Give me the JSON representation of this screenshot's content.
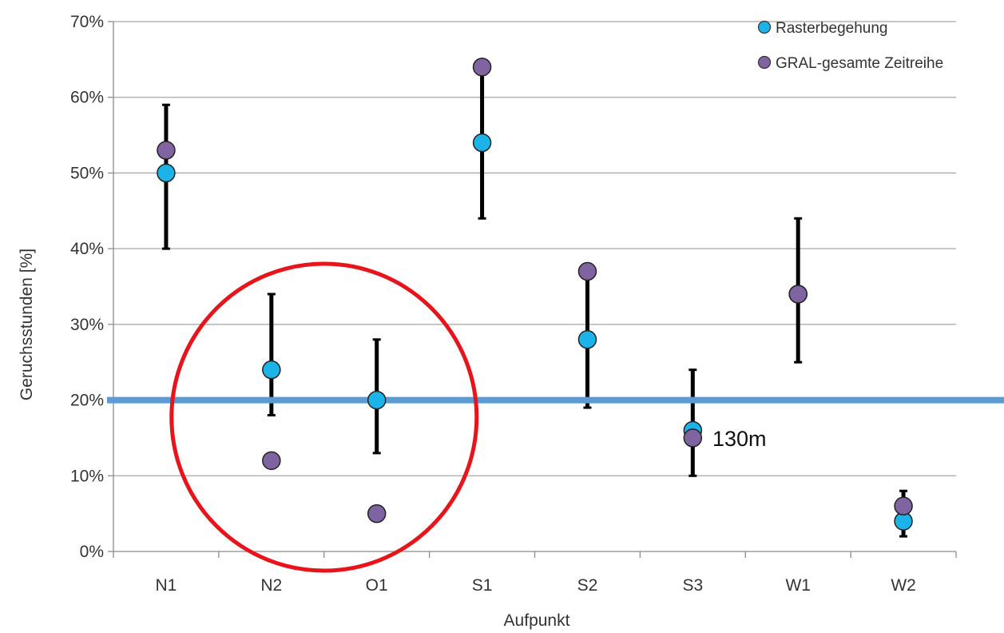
{
  "chart_data": {
    "type": "scatter",
    "title": "",
    "xlabel": "Aufpunkt",
    "ylabel": "Geruchsstunden [%]",
    "ylim": [
      0,
      70
    ],
    "yticks": [
      "0%",
      "10%",
      "20%",
      "30%",
      "40%",
      "50%",
      "60%",
      "70%"
    ],
    "grid": true,
    "legend_position": "top-right",
    "categories": [
      "N1",
      "N2",
      "O1",
      "S1",
      "S2",
      "S3",
      "W1",
      "W2"
    ],
    "series": [
      {
        "name": "Rasterbegehung",
        "color": "#1cb4e8",
        "values": [
          50,
          24,
          20,
          54,
          28,
          16,
          34,
          4
        ],
        "error_low": [
          40,
          18,
          13,
          44,
          19,
          10,
          25,
          2
        ],
        "error_high": [
          59,
          34,
          28,
          63,
          37,
          24,
          44,
          8
        ]
      },
      {
        "name": "GRAL-gesamte Zeitreihe",
        "color": "#8064a2",
        "values": [
          53,
          12,
          5,
          64,
          37,
          15,
          34,
          6
        ]
      }
    ],
    "reference_line": {
      "y": 20,
      "color": "#5b9bd5"
    },
    "highlight": {
      "type": "circle",
      "categories": [
        "N2",
        "O1"
      ],
      "color": "#e8141b"
    },
    "annotation": {
      "text": "130m",
      "near": "S3"
    }
  }
}
